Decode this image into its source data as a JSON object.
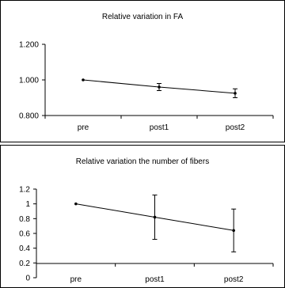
{
  "chart_data": [
    {
      "type": "line",
      "title": "Relative variation in FA",
      "xlabel": "",
      "ylabel": "",
      "categories": [
        "pre",
        "post1",
        "post2"
      ],
      "values": [
        1.0,
        0.96,
        0.925
      ],
      "error": [
        0,
        0.02,
        0.025
      ],
      "ylim": [
        0.8,
        1.2
      ],
      "yticks": [
        0.8,
        1.0,
        1.2
      ],
      "ytick_labels": [
        "0.800",
        "1.000",
        "1.200"
      ],
      "grid": false,
      "legend": "none"
    },
    {
      "type": "line",
      "title": "Relative variation the number of fibers",
      "xlabel": "",
      "ylabel": "",
      "categories": [
        "pre",
        "post1",
        "post2"
      ],
      "values": [
        1.0,
        0.82,
        0.64
      ],
      "error": [
        0,
        0.3,
        0.29
      ],
      "ylim": [
        0,
        1.2
      ],
      "yticks": [
        0,
        0.2,
        0.4,
        0.6,
        0.8,
        1,
        1.2
      ],
      "ytick_labels": [
        "0",
        "0.2",
        "0.4",
        "0.6",
        "0.8",
        "1",
        "1.2"
      ],
      "grid": false,
      "legend": "none"
    }
  ],
  "colors": {
    "line": "#000000",
    "background": "#ffffff"
  }
}
